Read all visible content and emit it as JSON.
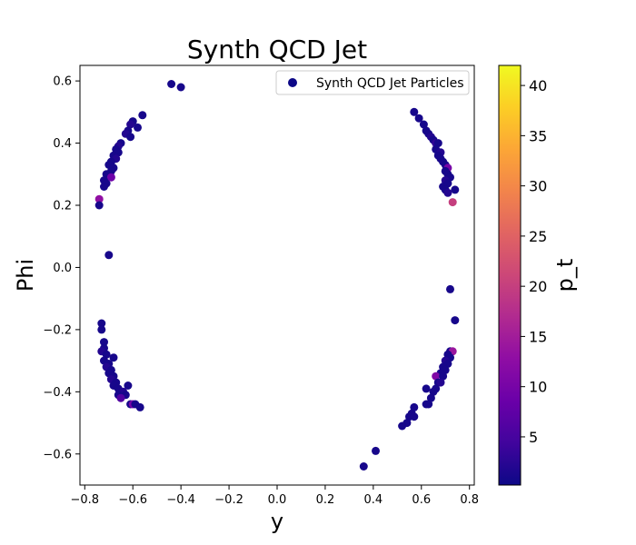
{
  "chart_data": {
    "type": "scatter",
    "title": "Synth QCD Jet",
    "xlabel": "y",
    "ylabel": "Phi",
    "xlim": [
      -0.82,
      0.82
    ],
    "ylim": [
      -0.7,
      0.65
    ],
    "xticks": [
      -0.8,
      -0.6,
      -0.4,
      -0.2,
      0.0,
      0.2,
      0.4,
      0.6,
      0.8
    ],
    "xtick_labels": [
      "−0.8",
      "−0.6",
      "−0.4",
      "−0.2",
      "0.0",
      "0.2",
      "0.4",
      "0.6",
      "0.8"
    ],
    "yticks": [
      -0.6,
      -0.4,
      -0.2,
      0.0,
      0.2,
      0.4,
      0.6
    ],
    "ytick_labels": [
      "−0.6",
      "−0.4",
      "−0.2",
      "0.0",
      "0.2",
      "0.4",
      "0.6"
    ],
    "grid": false,
    "legend": {
      "position": "top-right",
      "entries": [
        "Synth QCD Jet Particles"
      ]
    },
    "legend_marker_color": "#0d0887",
    "colorbar": {
      "label": "p_t",
      "range": [
        0.2,
        42
      ],
      "ticks": [
        5,
        10,
        15,
        20,
        25,
        30,
        35,
        40
      ],
      "tick_labels": [
        "5",
        "10",
        "15",
        "20",
        "25",
        "30",
        "35",
        "40"
      ],
      "colormap": "plasma",
      "stops": [
        "#0d0887",
        "#41049d",
        "#6a00a8",
        "#8f0da4",
        "#b12a90",
        "#cc4778",
        "#e16462",
        "#f2844b",
        "#fca636",
        "#fcce25",
        "#f0f921"
      ]
    },
    "series": [
      {
        "points": [
          {
            "x": -0.44,
            "y": 0.59,
            "pt": 1
          },
          {
            "x": -0.4,
            "y": 0.58,
            "pt": 1
          },
          {
            "x": -0.56,
            "y": 0.49,
            "pt": 1
          },
          {
            "x": -0.6,
            "y": 0.47,
            "pt": 1
          },
          {
            "x": -0.61,
            "y": 0.46,
            "pt": 2
          },
          {
            "x": -0.58,
            "y": 0.45,
            "pt": 1
          },
          {
            "x": -0.62,
            "y": 0.44,
            "pt": 1
          },
          {
            "x": -0.63,
            "y": 0.43,
            "pt": 2
          },
          {
            "x": -0.61,
            "y": 0.42,
            "pt": 1
          },
          {
            "x": -0.65,
            "y": 0.4,
            "pt": 1
          },
          {
            "x": -0.66,
            "y": 0.39,
            "pt": 2
          },
          {
            "x": -0.67,
            "y": 0.38,
            "pt": 1
          },
          {
            "x": -0.66,
            "y": 0.37,
            "pt": 1
          },
          {
            "x": -0.68,
            "y": 0.36,
            "pt": 1
          },
          {
            "x": -0.67,
            "y": 0.35,
            "pt": 2
          },
          {
            "x": -0.69,
            "y": 0.34,
            "pt": 1
          },
          {
            "x": -0.7,
            "y": 0.33,
            "pt": 1
          },
          {
            "x": -0.68,
            "y": 0.32,
            "pt": 1
          },
          {
            "x": -0.69,
            "y": 0.31,
            "pt": 1
          },
          {
            "x": -0.71,
            "y": 0.3,
            "pt": 1
          },
          {
            "x": -0.69,
            "y": 0.29,
            "pt": 9
          },
          {
            "x": -0.72,
            "y": 0.28,
            "pt": 1
          },
          {
            "x": -0.71,
            "y": 0.27,
            "pt": 1
          },
          {
            "x": -0.72,
            "y": 0.26,
            "pt": 1
          },
          {
            "x": -0.74,
            "y": 0.22,
            "pt": 13
          },
          {
            "x": -0.74,
            "y": 0.2,
            "pt": 1
          },
          {
            "x": -0.7,
            "y": 0.04,
            "pt": 1
          },
          {
            "x": 0.57,
            "y": 0.5,
            "pt": 1
          },
          {
            "x": 0.59,
            "y": 0.48,
            "pt": 1
          },
          {
            "x": 0.61,
            "y": 0.46,
            "pt": 1
          },
          {
            "x": 0.62,
            "y": 0.44,
            "pt": 1
          },
          {
            "x": 0.63,
            "y": 0.43,
            "pt": 1
          },
          {
            "x": 0.64,
            "y": 0.42,
            "pt": 2
          },
          {
            "x": 0.65,
            "y": 0.41,
            "pt": 1
          },
          {
            "x": 0.66,
            "y": 0.4,
            "pt": 3
          },
          {
            "x": 0.67,
            "y": 0.4,
            "pt": 1
          },
          {
            "x": 0.66,
            "y": 0.38,
            "pt": 1
          },
          {
            "x": 0.68,
            "y": 0.37,
            "pt": 2
          },
          {
            "x": 0.67,
            "y": 0.36,
            "pt": 1
          },
          {
            "x": 0.68,
            "y": 0.35,
            "pt": 1
          },
          {
            "x": 0.69,
            "y": 0.34,
            "pt": 1
          },
          {
            "x": 0.7,
            "y": 0.33,
            "pt": 1
          },
          {
            "x": 0.71,
            "y": 0.32,
            "pt": 10
          },
          {
            "x": 0.7,
            "y": 0.31,
            "pt": 1
          },
          {
            "x": 0.71,
            "y": 0.3,
            "pt": 1
          },
          {
            "x": 0.72,
            "y": 0.29,
            "pt": 1
          },
          {
            "x": 0.7,
            "y": 0.28,
            "pt": 2
          },
          {
            "x": 0.71,
            "y": 0.27,
            "pt": 1
          },
          {
            "x": 0.69,
            "y": 0.26,
            "pt": 1
          },
          {
            "x": 0.7,
            "y": 0.25,
            "pt": 1
          },
          {
            "x": 0.74,
            "y": 0.25,
            "pt": 1
          },
          {
            "x": 0.71,
            "y": 0.24,
            "pt": 2
          },
          {
            "x": 0.73,
            "y": 0.21,
            "pt": 20
          },
          {
            "x": 0.72,
            "y": -0.07,
            "pt": 1
          },
          {
            "x": 0.74,
            "y": -0.17,
            "pt": 1
          },
          {
            "x": -0.73,
            "y": -0.18,
            "pt": 1
          },
          {
            "x": -0.73,
            "y": -0.2,
            "pt": 1
          },
          {
            "x": -0.72,
            "y": -0.24,
            "pt": 1
          },
          {
            "x": -0.72,
            "y": -0.26,
            "pt": 1
          },
          {
            "x": -0.73,
            "y": -0.27,
            "pt": 2
          },
          {
            "x": -0.71,
            "y": -0.28,
            "pt": 1
          },
          {
            "x": -0.68,
            "y": -0.29,
            "pt": 1
          },
          {
            "x": -0.72,
            "y": -0.3,
            "pt": 1
          },
          {
            "x": -0.7,
            "y": -0.31,
            "pt": 1
          },
          {
            "x": -0.71,
            "y": -0.32,
            "pt": 2
          },
          {
            "x": -0.69,
            "y": -0.33,
            "pt": 1
          },
          {
            "x": -0.7,
            "y": -0.34,
            "pt": 1
          },
          {
            "x": -0.68,
            "y": -0.35,
            "pt": 1
          },
          {
            "x": -0.69,
            "y": -0.36,
            "pt": 2
          },
          {
            "x": -0.67,
            "y": -0.37,
            "pt": 1
          },
          {
            "x": -0.68,
            "y": -0.38,
            "pt": 1
          },
          {
            "x": -0.62,
            "y": -0.38,
            "pt": 1
          },
          {
            "x": -0.66,
            "y": -0.39,
            "pt": 1
          },
          {
            "x": -0.64,
            "y": -0.4,
            "pt": 2
          },
          {
            "x": -0.63,
            "y": -0.41,
            "pt": 1
          },
          {
            "x": -0.66,
            "y": -0.41,
            "pt": 1
          },
          {
            "x": -0.65,
            "y": -0.42,
            "pt": 6
          },
          {
            "x": -0.61,
            "y": -0.44,
            "pt": 1
          },
          {
            "x": -0.6,
            "y": -0.44,
            "pt": 10
          },
          {
            "x": -0.59,
            "y": -0.44,
            "pt": 1
          },
          {
            "x": -0.57,
            "y": -0.45,
            "pt": 1
          },
          {
            "x": 0.72,
            "y": -0.27,
            "pt": 1
          },
          {
            "x": 0.73,
            "y": -0.27,
            "pt": 14
          },
          {
            "x": 0.71,
            "y": -0.28,
            "pt": 1
          },
          {
            "x": 0.72,
            "y": -0.29,
            "pt": 1
          },
          {
            "x": 0.7,
            "y": -0.3,
            "pt": 2
          },
          {
            "x": 0.71,
            "y": -0.31,
            "pt": 1
          },
          {
            "x": 0.69,
            "y": -0.32,
            "pt": 1
          },
          {
            "x": 0.7,
            "y": -0.33,
            "pt": 1
          },
          {
            "x": 0.68,
            "y": -0.34,
            "pt": 1
          },
          {
            "x": 0.66,
            "y": -0.35,
            "pt": 11
          },
          {
            "x": 0.69,
            "y": -0.35,
            "pt": 1
          },
          {
            "x": 0.67,
            "y": -0.37,
            "pt": 1
          },
          {
            "x": 0.68,
            "y": -0.37,
            "pt": 2
          },
          {
            "x": 0.66,
            "y": -0.39,
            "pt": 1
          },
          {
            "x": 0.62,
            "y": -0.39,
            "pt": 1
          },
          {
            "x": 0.65,
            "y": -0.4,
            "pt": 1
          },
          {
            "x": 0.64,
            "y": -0.42,
            "pt": 1
          },
          {
            "x": 0.63,
            "y": -0.44,
            "pt": 1
          },
          {
            "x": 0.62,
            "y": -0.44,
            "pt": 1
          },
          {
            "x": 0.57,
            "y": -0.45,
            "pt": 1
          },
          {
            "x": 0.56,
            "y": -0.47,
            "pt": 1
          },
          {
            "x": 0.55,
            "y": -0.48,
            "pt": 1
          },
          {
            "x": 0.57,
            "y": -0.48,
            "pt": 1
          },
          {
            "x": 0.54,
            "y": -0.5,
            "pt": 1
          },
          {
            "x": 0.52,
            "y": -0.51,
            "pt": 1
          },
          {
            "x": 0.41,
            "y": -0.59,
            "pt": 1
          },
          {
            "x": 0.36,
            "y": -0.64,
            "pt": 1
          }
        ]
      }
    ]
  }
}
